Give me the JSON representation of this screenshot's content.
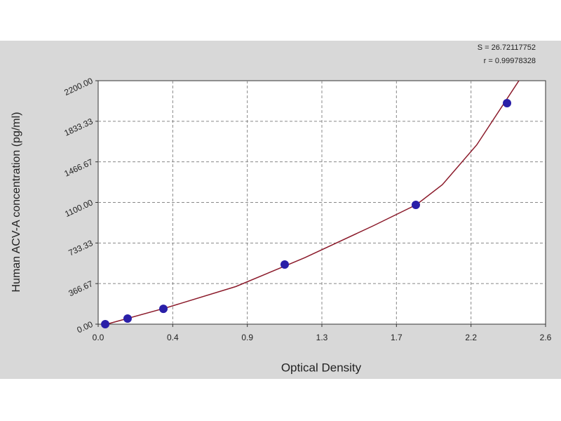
{
  "chart_data": {
    "type": "scatter",
    "y_label": "Human ACV-A concentration (pg/ml)",
    "x_label": "Optical Density",
    "annotations": [
      "S = 26.72117752",
      "r = 0.99978328"
    ],
    "xlim": [
      0,
      2.6
    ],
    "xticks": [
      {
        "value": 0,
        "label": "0.0"
      },
      {
        "value": 0.4333,
        "label": "0.4"
      },
      {
        "value": 0.8667,
        "label": "0.9"
      },
      {
        "value": 1.3,
        "label": "1.3"
      },
      {
        "value": 1.7333,
        "label": "1.7"
      },
      {
        "value": 2.1667,
        "label": "2.2"
      },
      2.6
    ],
    "ylim": [
      0,
      2200
    ],
    "yticks": [
      {
        "value": 0,
        "label": "0.00"
      },
      366.67,
      733.33,
      {
        "value": 1100,
        "label": "1100.00"
      },
      1466.67,
      1833.33,
      {
        "value": 2200,
        "label": "2200.00"
      }
    ],
    "grid": true,
    "series": [
      {
        "style": "markers",
        "color": "#2a1fa8",
        "x": [
          0.041,
          0.171,
          0.379,
          1.084,
          1.846,
          2.376
        ],
        "values": [
          0,
          51,
          139,
          539,
          1078,
          1997
        ]
      },
      {
        "style": "line",
        "color": "#8b1a2a",
        "x": [
          0.05,
          0.4,
          0.8,
          1.2,
          1.6,
          1.85,
          2.0,
          2.2,
          2.445
        ],
        "values": [
          0,
          150,
          340,
          600,
          890,
          1080,
          1260,
          1620,
          2200
        ]
      }
    ]
  }
}
